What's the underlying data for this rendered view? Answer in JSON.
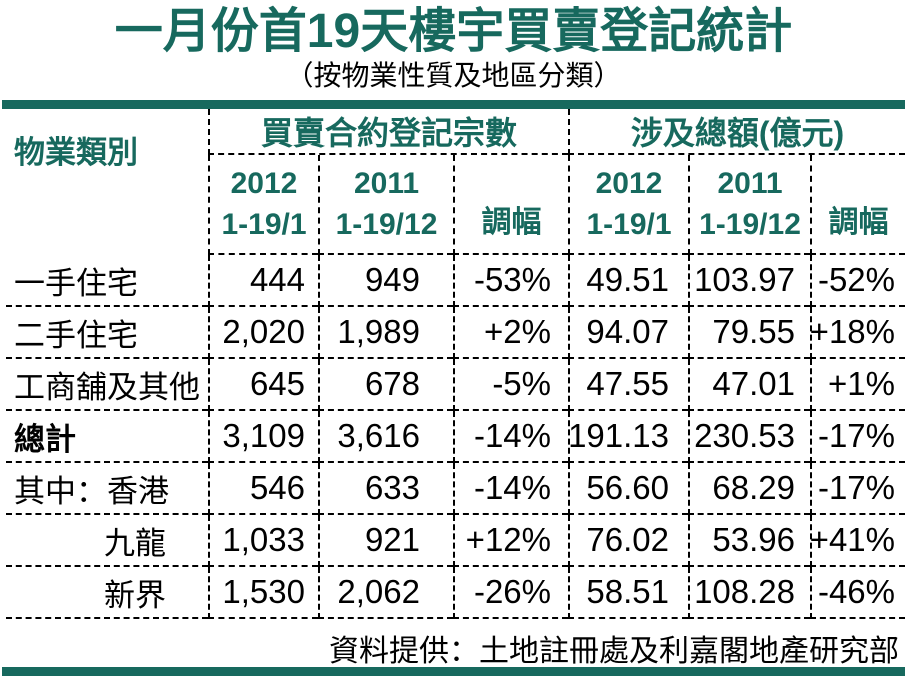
{
  "colors": {
    "accent": "#17695E",
    "text": "#000000"
  },
  "title": "一月份首19天樓宇買賣登記統計",
  "subtitle": "（按物業性質及地區分類）",
  "footer": "資料提供：土地註冊處及利嘉閣地產研究部",
  "chart_data": {
    "type": "table",
    "title": "一月份首19天樓宇買賣登記統計",
    "subtitle": "（按物業性質及地區分類）",
    "corner_header": "物業類別",
    "groups": [
      {
        "label": "買賣合約登記宗數"
      },
      {
        "label": "涉及總額(億元)"
      }
    ],
    "sub_headers": [
      {
        "line1": "2012",
        "line2": "1-19/1"
      },
      {
        "line1": "2011",
        "line2": "1-19/12"
      },
      {
        "line1": "",
        "line2": "調幅"
      },
      {
        "line1": "2012",
        "line2": "1-19/1"
      },
      {
        "line1": "2011",
        "line2": "1-19/12"
      },
      {
        "line1": "",
        "line2": "調幅"
      }
    ],
    "rows": [
      {
        "label": "一手住宅",
        "values": [
          "444",
          "949",
          "-53%",
          "49.51",
          "103.97",
          "-52%"
        ]
      },
      {
        "label": "二手住宅",
        "values": [
          "2,020",
          "1,989",
          "+2%",
          "94.07",
          "79.55",
          "+18%"
        ]
      },
      {
        "label": "工商舖及其他",
        "values": [
          "645",
          "678",
          "-5%",
          "47.55",
          "47.01",
          "+1%"
        ]
      },
      {
        "label": "總計",
        "values": [
          "3,109",
          "3,616",
          "-14%",
          "191.13",
          "230.53",
          "-17%"
        ]
      },
      {
        "label": "其中：香港",
        "values": [
          "546",
          "633",
          "-14%",
          "56.60",
          "68.29",
          "-17%"
        ]
      },
      {
        "label": "九龍",
        "values": [
          "1,033",
          "921",
          "+12%",
          "76.02",
          "53.96",
          "+41%"
        ]
      },
      {
        "label": "新界",
        "values": [
          "1,530",
          "2,062",
          "-26%",
          "58.51",
          "108.28",
          "-46%"
        ]
      }
    ],
    "source": "資料提供：土地註冊處及利嘉閣地產研究部"
  }
}
